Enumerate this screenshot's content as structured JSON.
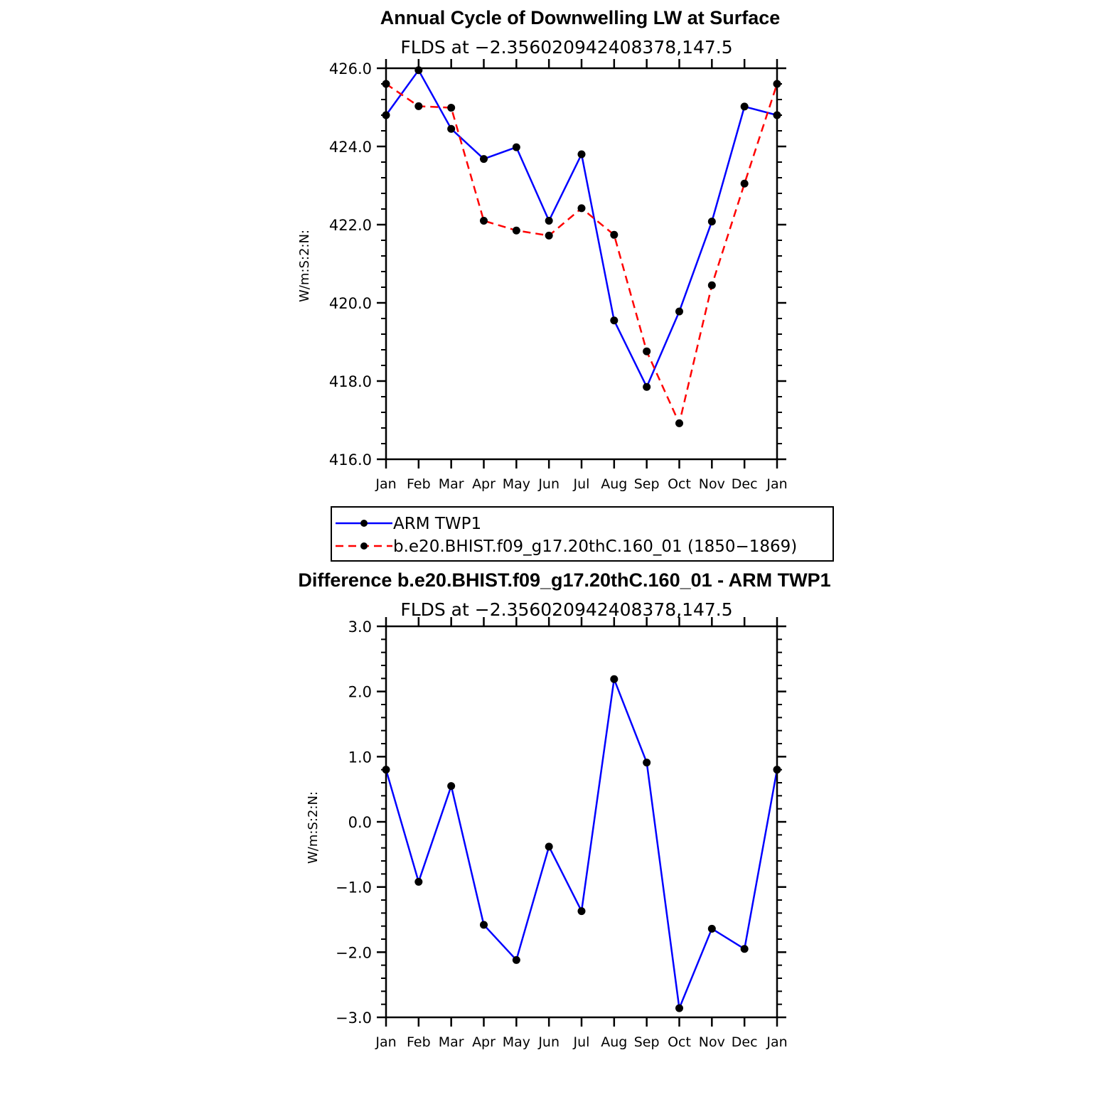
{
  "chart_data": [
    {
      "type": "line",
      "title": "Annual Cycle of Downwelling LW at Surface",
      "subtitle": "FLDS at −2.356020942408378,147.5",
      "ylabel": "W/m:S:2:N:",
      "xlabel": "",
      "categories": [
        "Jan",
        "Feb",
        "Mar",
        "Apr",
        "May",
        "Jun",
        "Jul",
        "Aug",
        "Sep",
        "Oct",
        "Nov",
        "Dec",
        "Jan"
      ],
      "ylim": [
        416.0,
        426.0
      ],
      "yticks": [
        416.0,
        418.0,
        420.0,
        422.0,
        424.0,
        426.0
      ],
      "ytick_labels": [
        "416.0",
        "418.0",
        "420.0",
        "422.0",
        "424.0",
        "426.0"
      ],
      "series": [
        {
          "name": "ARM TWP1",
          "color": "#0000ff",
          "dash": "solid",
          "values": [
            424.8,
            425.95,
            424.45,
            423.68,
            423.98,
            422.1,
            423.8,
            419.55,
            417.85,
            419.78,
            422.08,
            425.02,
            424.8
          ]
        },
        {
          "name": "b.e20.BHIST.f09_g17.20thC.160_01 (1850−1869)",
          "color": "#ff0000",
          "dash": "dashed",
          "values": [
            425.6,
            425.03,
            424.99,
            422.1,
            421.85,
            421.72,
            422.42,
            421.74,
            418.76,
            416.92,
            420.45,
            423.05,
            425.6
          ]
        }
      ],
      "legend": {
        "position": "below",
        "entries": [
          "ARM TWP1",
          "b.e20.BHIST.f09_g17.20thC.160_01 (1850−1869)"
        ]
      }
    },
    {
      "type": "line",
      "title": "Difference b.e20.BHIST.f09_g17.20thC.160_01 - ARM TWP1",
      "subtitle": "FLDS at −2.356020942408378,147.5",
      "ylabel": "W/m:S:2:N:",
      "xlabel": "",
      "categories": [
        "Jan",
        "Feb",
        "Mar",
        "Apr",
        "May",
        "Jun",
        "Jul",
        "Aug",
        "Sep",
        "Oct",
        "Nov",
        "Dec",
        "Jan"
      ],
      "ylim": [
        -3.0,
        3.0
      ],
      "yticks": [
        -3.0,
        -2.0,
        -1.0,
        0.0,
        1.0,
        2.0,
        3.0
      ],
      "ytick_labels": [
        "−3.0",
        "−2.0",
        "−1.0",
        "0.0",
        "1.0",
        "2.0",
        "3.0"
      ],
      "series": [
        {
          "name": "Difference",
          "color": "#0000ff",
          "dash": "solid",
          "values": [
            0.8,
            -0.92,
            0.55,
            -1.58,
            -2.12,
            -0.38,
            -1.37,
            2.19,
            0.91,
            -2.86,
            -1.64,
            -1.95,
            0.8
          ]
        }
      ]
    }
  ]
}
